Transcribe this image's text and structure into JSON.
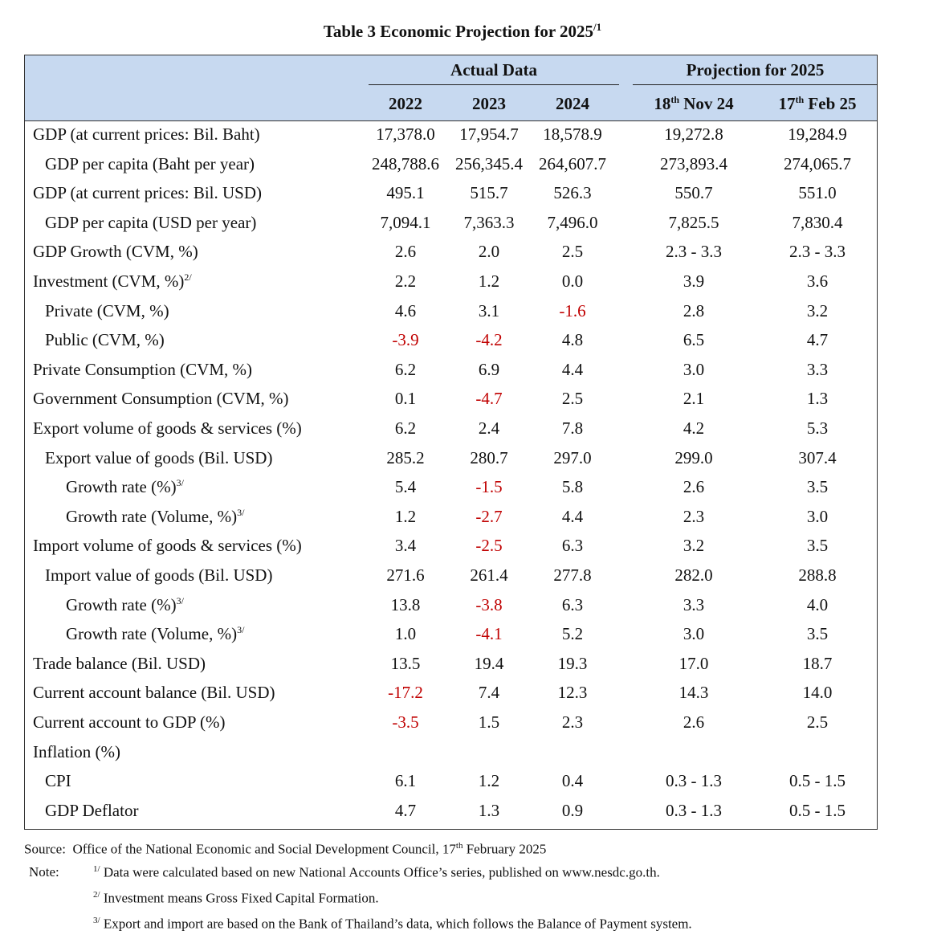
{
  "title": {
    "text": "Table 3 Economic Projection for 2025",
    "sup": "/1"
  },
  "header": {
    "actual_label": "Actual Data",
    "projection_label": "Projection for 2025",
    "years": [
      "2022",
      "2023",
      "2024"
    ],
    "proj_cols": [
      {
        "main": "18",
        "sup": "th",
        "rest": " Nov 24"
      },
      {
        "main": "17",
        "sup": "th",
        "rest": " Feb 25"
      }
    ]
  },
  "rows": [
    {
      "label": "GDP (at current prices: Bil. Baht)",
      "sup": "",
      "indent": 0,
      "values": [
        "17,378.0",
        "17,954.7",
        "18,578.9",
        "19,272.8",
        "19,284.9"
      ]
    },
    {
      "label": "GDP per capita (Baht per year)",
      "sup": "",
      "indent": 1,
      "values": [
        "248,788.6",
        "256,345.4",
        "264,607.7",
        "273,893.4",
        "274,065.7"
      ]
    },
    {
      "label": "GDP (at current prices: Bil. USD)",
      "sup": "",
      "indent": 0,
      "values": [
        "495.1",
        "515.7",
        "526.3",
        "550.7",
        "551.0"
      ]
    },
    {
      "label": "GDP per capita (USD per year)",
      "sup": "",
      "indent": 1,
      "values": [
        "7,094.1",
        "7,363.3",
        "7,496.0",
        "7,825.5",
        "7,830.4"
      ]
    },
    {
      "label": "GDP Growth (CVM, %)",
      "sup": "",
      "indent": 0,
      "values": [
        "2.6",
        "2.0",
        "2.5",
        "2.3 - 3.3",
        "2.3 - 3.3"
      ]
    },
    {
      "label": "Investment (CVM, %)",
      "sup": "2/",
      "indent": 0,
      "values": [
        "2.2",
        "1.2",
        "0.0",
        "3.9",
        "3.6"
      ]
    },
    {
      "label": "Private (CVM, %)",
      "sup": "",
      "indent": 1,
      "values": [
        "4.6",
        "3.1",
        "-1.6",
        "2.8",
        "3.2"
      ]
    },
    {
      "label": "Public (CVM, %)",
      "sup": "",
      "indent": 1,
      "values": [
        "-3.9",
        "-4.2",
        "4.8",
        "6.5",
        "4.7"
      ]
    },
    {
      "label": "Private Consumption (CVM, %)",
      "sup": "",
      "indent": 0,
      "values": [
        "6.2",
        "6.9",
        "4.4",
        "3.0",
        "3.3"
      ]
    },
    {
      "label": "Government Consumption (CVM, %)",
      "sup": "",
      "indent": 0,
      "values": [
        "0.1",
        "-4.7",
        "2.5",
        "2.1",
        "1.3"
      ]
    },
    {
      "label": "Export volume of goods & services (%)",
      "sup": "",
      "indent": 0,
      "values": [
        "6.2",
        "2.4",
        "7.8",
        "4.2",
        "5.3"
      ]
    },
    {
      "label": "Export value of goods (Bil. USD)",
      "sup": "",
      "indent": 1,
      "values": [
        "285.2",
        "280.7",
        "297.0",
        "299.0",
        "307.4"
      ]
    },
    {
      "label": "Growth rate (%)",
      "sup": "3/",
      "indent": 2,
      "values": [
        "5.4",
        "-1.5",
        "5.8",
        "2.6",
        "3.5"
      ]
    },
    {
      "label": "Growth rate (Volume, %)",
      "sup": "3/",
      "indent": 2,
      "values": [
        "1.2",
        "-2.7",
        "4.4",
        "2.3",
        "3.0"
      ]
    },
    {
      "label": "Import volume of goods & services (%)",
      "sup": "",
      "indent": 0,
      "values": [
        "3.4",
        "-2.5",
        "6.3",
        "3.2",
        "3.5"
      ]
    },
    {
      "label": "Import value of goods (Bil. USD)",
      "sup": "",
      "indent": 1,
      "values": [
        "271.6",
        "261.4",
        "277.8",
        "282.0",
        "288.8"
      ]
    },
    {
      "label": "Growth rate (%)",
      "sup": "3/",
      "indent": 2,
      "values": [
        "13.8",
        "-3.8",
        "6.3",
        "3.3",
        "4.0"
      ]
    },
    {
      "label": "Growth rate (Volume, %)",
      "sup": "3/",
      "indent": 2,
      "values": [
        "1.0",
        "-4.1",
        "5.2",
        "3.0",
        "3.5"
      ]
    },
    {
      "label": "Trade balance (Bil. USD)",
      "sup": "",
      "indent": 0,
      "values": [
        "13.5",
        "19.4",
        "19.3",
        "17.0",
        "18.7"
      ]
    },
    {
      "label": "Current account balance (Bil. USD)",
      "sup": "",
      "indent": 0,
      "values": [
        "-17.2",
        "7.4",
        "12.3",
        "14.3",
        "14.0"
      ]
    },
    {
      "label": "Current account to GDP (%)",
      "sup": "",
      "indent": 0,
      "values": [
        "-3.5",
        "1.5",
        "2.3",
        "2.6",
        "2.5"
      ]
    },
    {
      "label": "Inflation (%)",
      "sup": "",
      "indent": 0,
      "values": [
        "",
        "",
        "",
        "",
        ""
      ]
    },
    {
      "label": "CPI",
      "sup": "",
      "indent": 1,
      "values": [
        "6.1",
        "1.2",
        "0.4",
        "0.3 - 1.3",
        "0.5 - 1.5"
      ]
    },
    {
      "label": "GDP Deflator",
      "sup": "",
      "indent": 1,
      "values": [
        "4.7",
        "1.3",
        "0.9",
        "0.3 - 1.3",
        "0.5 - 1.5"
      ]
    }
  ],
  "footer": {
    "source_label": "Source:",
    "source_text": "Office of the National Economic and Social Development Council, 17",
    "source_sup": "th",
    "source_tail": " February 2025",
    "note_label": "Note:",
    "notes": [
      {
        "sup": "1/",
        "text": "Data were calculated based on new National Accounts Office’s series, published on www.nesdc.go.th."
      },
      {
        "sup": "2/",
        "text": "Investment means Gross Fixed Capital Formation."
      },
      {
        "sup": "3/",
        "text": "Export and import are based on the Bank of Thailand’s data, which follows the Balance of Payment system."
      }
    ]
  },
  "colors": {
    "header_bg": "#c7d9f0",
    "negative": "#c00000",
    "border": "#333333"
  }
}
